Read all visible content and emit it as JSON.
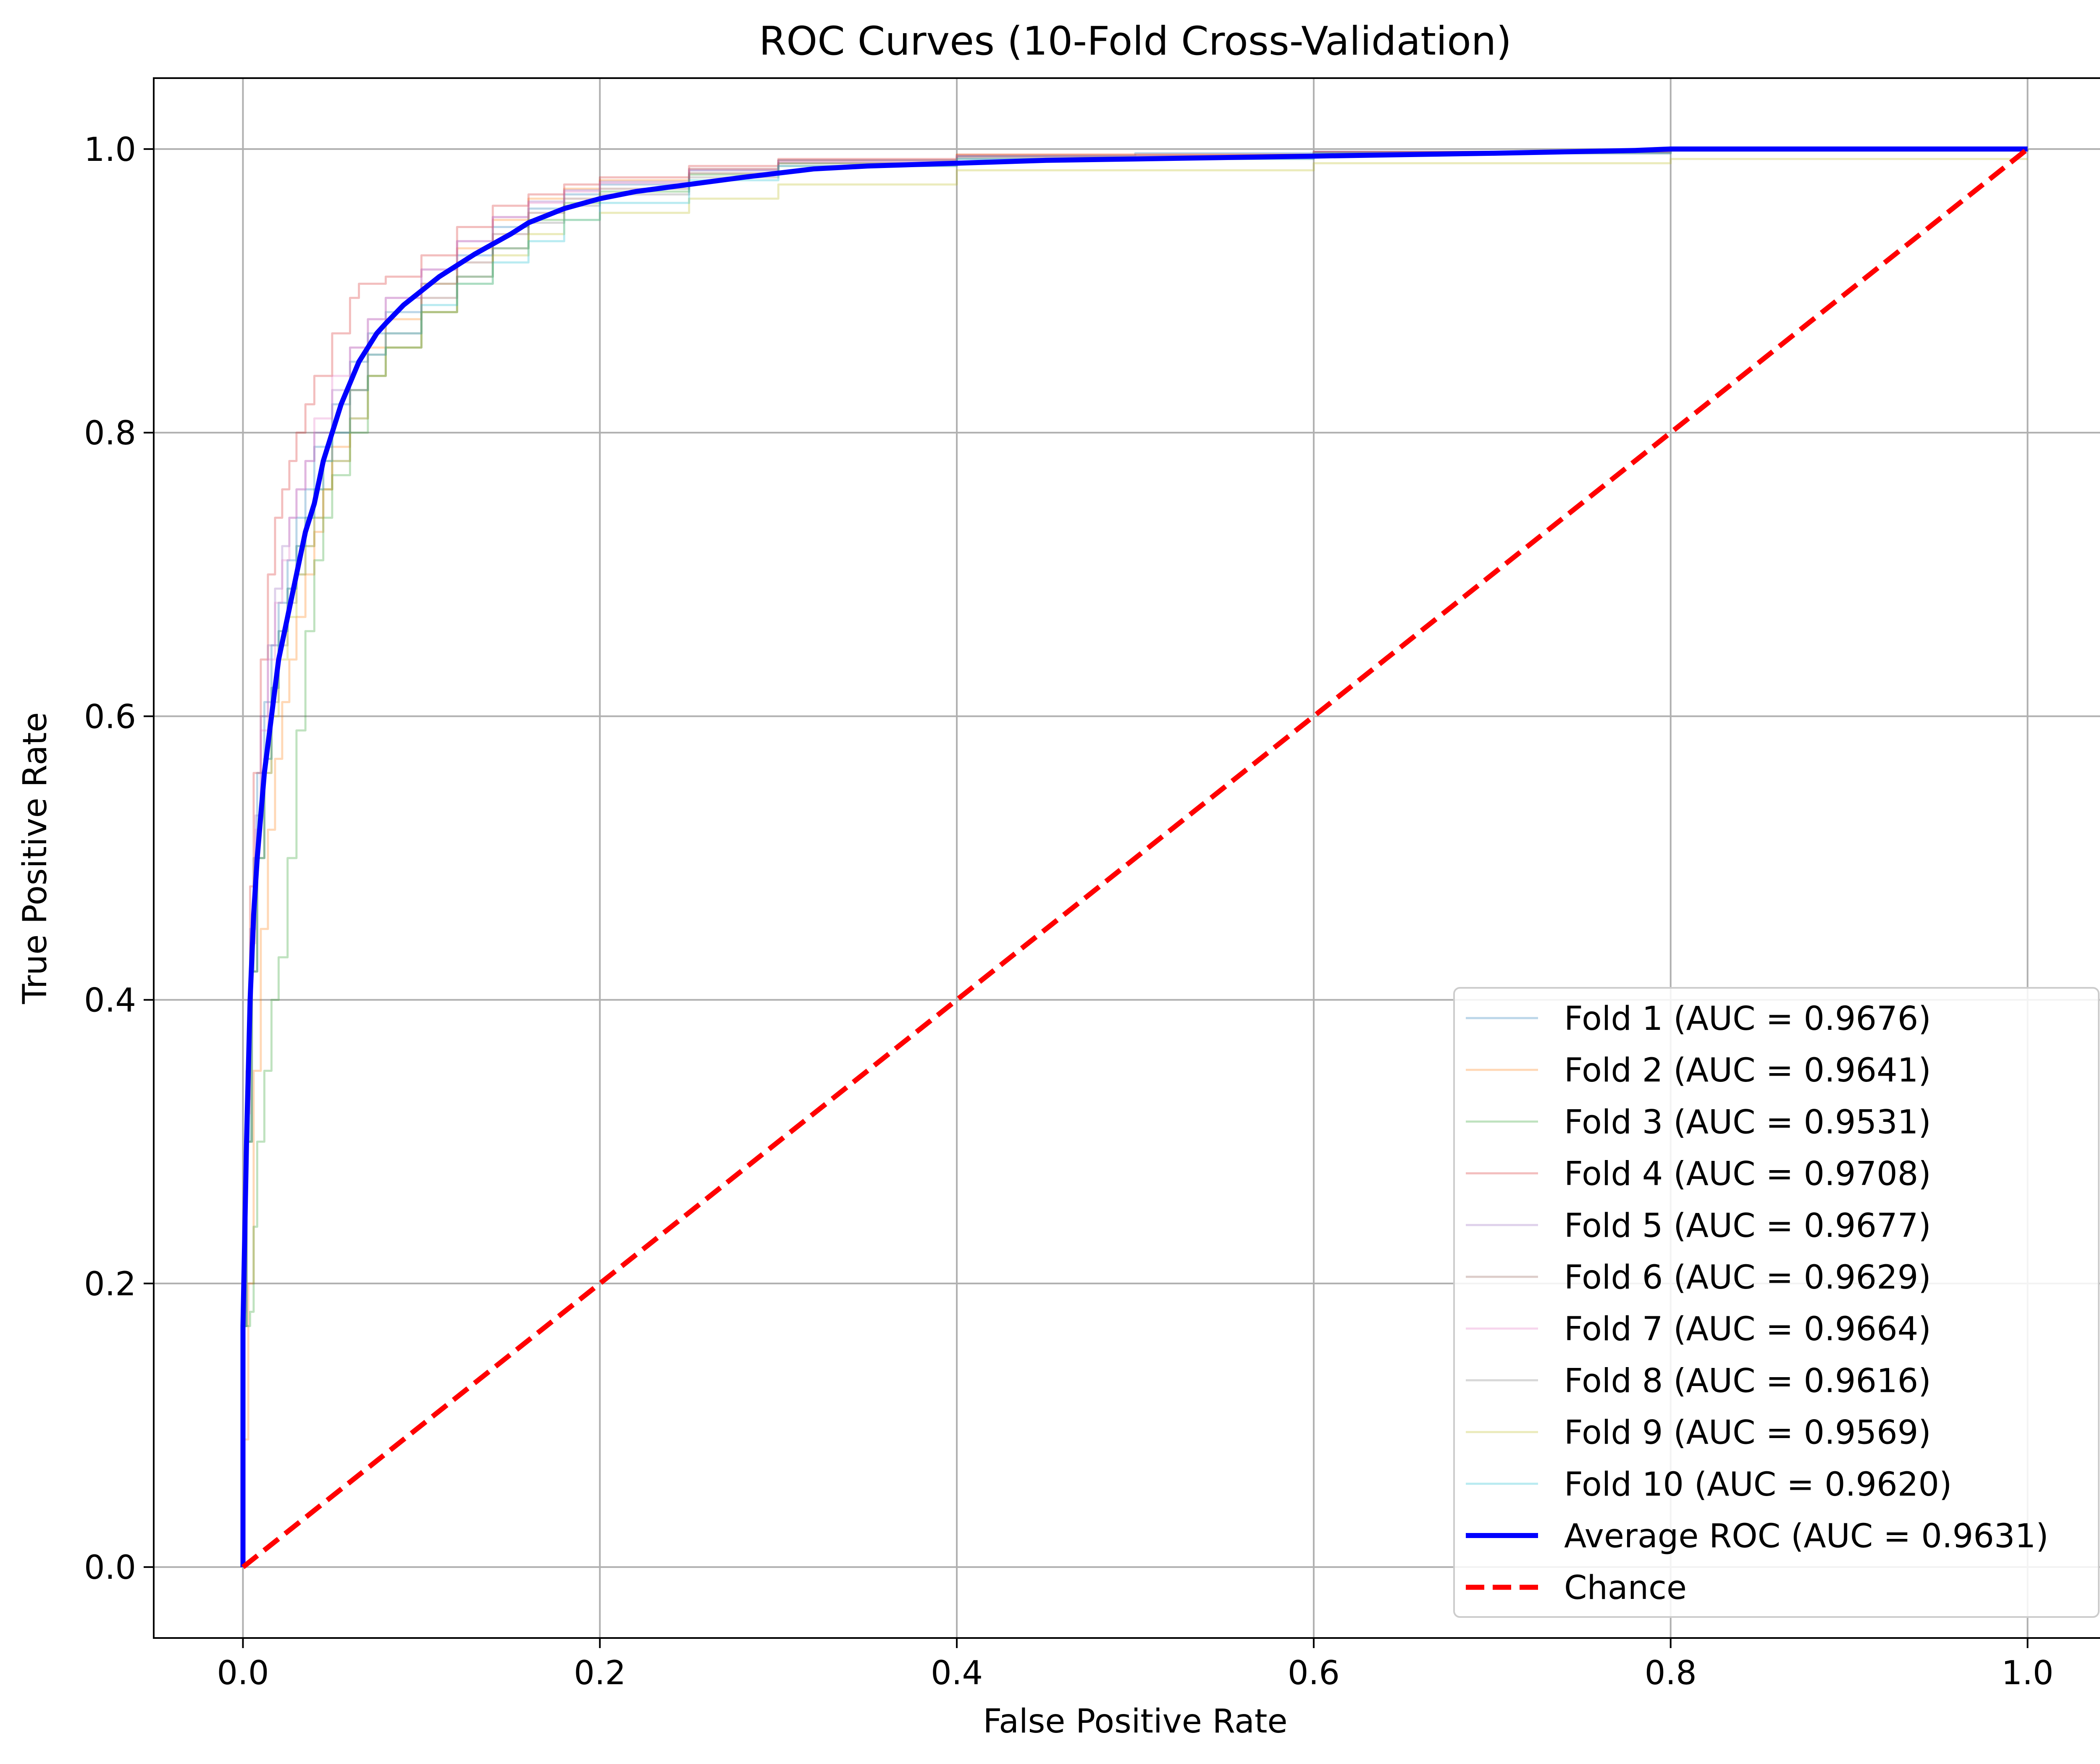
{
  "chart_data": {
    "type": "line",
    "title": "ROC Curves (10-Fold Cross-Validation)",
    "xlabel": "False Positive Rate",
    "ylabel": "True Positive Rate",
    "xlim": [
      -0.05,
      1.05
    ],
    "ylim": [
      -0.05,
      1.05
    ],
    "xticks": [
      0.0,
      0.2,
      0.4,
      0.6,
      0.8,
      1.0
    ],
    "xtick_labels": [
      "0.0",
      "0.2",
      "0.4",
      "0.6",
      "0.8",
      "1.0"
    ],
    "yticks": [
      0.0,
      0.2,
      0.4,
      0.6,
      0.8,
      1.0
    ],
    "ytick_labels": [
      "0.0",
      "0.2",
      "0.4",
      "0.6",
      "0.8",
      "1.0"
    ],
    "grid": true,
    "legend_position": "lower-right",
    "series": [
      {
        "name": "Fold 1 (AUC = 0.9676)",
        "color": "#1f77b4",
        "opacity": 0.3,
        "style": "solid",
        "x": [
          0,
          0,
          0.002,
          0.004,
          0.006,
          0.008,
          0.012,
          0.016,
          0.02,
          0.025,
          0.03,
          0.035,
          0.04,
          0.05,
          0.06,
          0.07,
          0.08,
          0.1,
          0.12,
          0.14,
          0.16,
          0.18,
          0.2,
          0.25,
          0.3,
          0.4,
          0.5,
          0.6,
          0.8,
          1.0
        ],
        "y": [
          0,
          0.17,
          0.3,
          0.42,
          0.5,
          0.56,
          0.61,
          0.65,
          0.68,
          0.71,
          0.74,
          0.76,
          0.79,
          0.82,
          0.85,
          0.87,
          0.885,
          0.905,
          0.925,
          0.945,
          0.958,
          0.968,
          0.975,
          0.985,
          0.992,
          0.995,
          0.997,
          0.998,
          0.999,
          1.0
        ]
      },
      {
        "name": "Fold 2 (AUC = 0.9641)",
        "color": "#ff7f0e",
        "opacity": 0.3,
        "style": "solid",
        "x": [
          0,
          0,
          0.003,
          0.006,
          0.01,
          0.014,
          0.018,
          0.022,
          0.026,
          0.03,
          0.035,
          0.04,
          0.045,
          0.05,
          0.06,
          0.07,
          0.08,
          0.1,
          0.12,
          0.14,
          0.16,
          0.18,
          0.2,
          0.25,
          0.3,
          0.4,
          0.6,
          0.8,
          1.0
        ],
        "y": [
          0,
          0.09,
          0.2,
          0.35,
          0.45,
          0.52,
          0.57,
          0.61,
          0.64,
          0.67,
          0.7,
          0.73,
          0.76,
          0.79,
          0.83,
          0.86,
          0.88,
          0.905,
          0.93,
          0.95,
          0.965,
          0.972,
          0.978,
          0.986,
          0.992,
          0.996,
          0.998,
          0.999,
          1.0
        ]
      },
      {
        "name": "Fold 3 (AUC = 0.9531)",
        "color": "#2ca02c",
        "opacity": 0.3,
        "style": "solid",
        "x": [
          0,
          0,
          0.004,
          0.006,
          0.008,
          0.012,
          0.016,
          0.02,
          0.025,
          0.03,
          0.035,
          0.04,
          0.045,
          0.05,
          0.06,
          0.07,
          0.08,
          0.1,
          0.12,
          0.14,
          0.16,
          0.18,
          0.2,
          0.25,
          0.3,
          0.4,
          0.6,
          0.8,
          1.0
        ],
        "y": [
          0,
          0.17,
          0.18,
          0.24,
          0.3,
          0.35,
          0.4,
          0.43,
          0.5,
          0.59,
          0.66,
          0.71,
          0.74,
          0.77,
          0.8,
          0.84,
          0.86,
          0.885,
          0.91,
          0.93,
          0.95,
          0.962,
          0.97,
          0.982,
          0.99,
          0.995,
          0.998,
          0.999,
          1.0
        ]
      },
      {
        "name": "Fold 4 (AUC = 0.9708)",
        "color": "#d62728",
        "opacity": 0.3,
        "style": "solid",
        "x": [
          0,
          0,
          0.002,
          0.004,
          0.006,
          0.01,
          0.014,
          0.018,
          0.022,
          0.026,
          0.03,
          0.035,
          0.04,
          0.05,
          0.06,
          0.065,
          0.08,
          0.1,
          0.12,
          0.14,
          0.16,
          0.18,
          0.2,
          0.25,
          0.3,
          0.4,
          0.6,
          0.8,
          1.0
        ],
        "y": [
          0,
          0.2,
          0.35,
          0.48,
          0.56,
          0.64,
          0.7,
          0.74,
          0.76,
          0.78,
          0.8,
          0.82,
          0.84,
          0.87,
          0.895,
          0.905,
          0.91,
          0.925,
          0.945,
          0.96,
          0.968,
          0.975,
          0.98,
          0.988,
          0.993,
          0.996,
          0.998,
          0.999,
          1.0
        ]
      },
      {
        "name": "Fold 5 (AUC = 0.9677)",
        "color": "#9467bd",
        "opacity": 0.3,
        "style": "solid",
        "x": [
          0,
          0,
          0.002,
          0.004,
          0.007,
          0.01,
          0.014,
          0.018,
          0.022,
          0.026,
          0.03,
          0.035,
          0.04,
          0.05,
          0.06,
          0.07,
          0.08,
          0.1,
          0.12,
          0.14,
          0.16,
          0.18,
          0.2,
          0.25,
          0.3,
          0.4,
          0.6,
          0.8,
          1.0
        ],
        "y": [
          0,
          0.18,
          0.33,
          0.45,
          0.53,
          0.6,
          0.65,
          0.69,
          0.72,
          0.74,
          0.76,
          0.78,
          0.8,
          0.83,
          0.86,
          0.88,
          0.895,
          0.915,
          0.935,
          0.952,
          0.963,
          0.971,
          0.977,
          0.986,
          0.992,
          0.995,
          0.998,
          0.999,
          1.0
        ]
      },
      {
        "name": "Fold 6 (AUC = 0.9629)",
        "color": "#8c564b",
        "opacity": 0.3,
        "style": "solid",
        "x": [
          0,
          0,
          0.002,
          0.005,
          0.008,
          0.012,
          0.016,
          0.02,
          0.025,
          0.03,
          0.035,
          0.04,
          0.045,
          0.05,
          0.06,
          0.07,
          0.08,
          0.1,
          0.12,
          0.14,
          0.16,
          0.18,
          0.2,
          0.25,
          0.3,
          0.4,
          0.6,
          0.8,
          1.0
        ],
        "y": [
          0,
          0.17,
          0.3,
          0.42,
          0.5,
          0.57,
          0.62,
          0.66,
          0.69,
          0.72,
          0.74,
          0.76,
          0.78,
          0.8,
          0.83,
          0.855,
          0.87,
          0.895,
          0.92,
          0.94,
          0.955,
          0.965,
          0.972,
          0.983,
          0.99,
          0.994,
          0.997,
          0.999,
          1.0
        ]
      },
      {
        "name": "Fold 7 (AUC = 0.9664)",
        "color": "#e377c2",
        "opacity": 0.3,
        "style": "solid",
        "x": [
          0,
          0,
          0.002,
          0.004,
          0.007,
          0.01,
          0.014,
          0.018,
          0.022,
          0.026,
          0.03,
          0.035,
          0.04,
          0.05,
          0.06,
          0.07,
          0.08,
          0.1,
          0.12,
          0.14,
          0.16,
          0.18,
          0.2,
          0.25,
          0.3,
          0.4,
          0.6,
          0.8,
          1.0
        ],
        "y": [
          0,
          0.18,
          0.32,
          0.44,
          0.52,
          0.59,
          0.64,
          0.68,
          0.71,
          0.74,
          0.76,
          0.78,
          0.81,
          0.84,
          0.86,
          0.88,
          0.895,
          0.915,
          0.935,
          0.952,
          0.962,
          0.97,
          0.976,
          0.985,
          0.991,
          0.995,
          0.998,
          0.999,
          1.0
        ]
      },
      {
        "name": "Fold 8 (AUC = 0.9616)",
        "color": "#7f7f7f",
        "opacity": 0.3,
        "style": "solid",
        "x": [
          0,
          0,
          0.002,
          0.005,
          0.008,
          0.012,
          0.016,
          0.02,
          0.025,
          0.03,
          0.035,
          0.04,
          0.045,
          0.05,
          0.06,
          0.07,
          0.08,
          0.1,
          0.12,
          0.14,
          0.16,
          0.18,
          0.2,
          0.25,
          0.3,
          0.4,
          0.6,
          0.8,
          1.0
        ],
        "y": [
          0,
          0.17,
          0.3,
          0.42,
          0.5,
          0.56,
          0.61,
          0.65,
          0.68,
          0.7,
          0.72,
          0.74,
          0.76,
          0.78,
          0.81,
          0.84,
          0.86,
          0.885,
          0.91,
          0.93,
          0.948,
          0.96,
          0.968,
          0.98,
          0.988,
          0.993,
          0.997,
          0.999,
          1.0
        ]
      },
      {
        "name": "Fold 9 (AUC = 0.9569)",
        "color": "#bcbd22",
        "opacity": 0.3,
        "style": "solid",
        "x": [
          0,
          0,
          0.002,
          0.005,
          0.008,
          0.012,
          0.016,
          0.02,
          0.025,
          0.03,
          0.035,
          0.04,
          0.045,
          0.05,
          0.06,
          0.07,
          0.08,
          0.1,
          0.12,
          0.14,
          0.16,
          0.18,
          0.2,
          0.25,
          0.3,
          0.4,
          0.6,
          0.8,
          1.0
        ],
        "y": [
          0,
          0.17,
          0.3,
          0.42,
          0.5,
          0.56,
          0.6,
          0.64,
          0.67,
          0.7,
          0.72,
          0.74,
          0.76,
          0.78,
          0.81,
          0.84,
          0.86,
          0.885,
          0.905,
          0.925,
          0.94,
          0.95,
          0.955,
          0.965,
          0.975,
          0.985,
          0.99,
          0.993,
          0.993
        ]
      },
      {
        "name": "Fold 10 (AUC = 0.9620)",
        "color": "#17becf",
        "opacity": 0.3,
        "style": "solid",
        "x": [
          0,
          0,
          0.002,
          0.005,
          0.008,
          0.012,
          0.016,
          0.02,
          0.025,
          0.03,
          0.035,
          0.04,
          0.045,
          0.05,
          0.06,
          0.07,
          0.08,
          0.1,
          0.12,
          0.14,
          0.16,
          0.18,
          0.2,
          0.25,
          0.3,
          0.4,
          0.6,
          0.8,
          1.0
        ],
        "y": [
          0,
          0.17,
          0.3,
          0.42,
          0.5,
          0.57,
          0.62,
          0.66,
          0.69,
          0.72,
          0.74,
          0.76,
          0.78,
          0.8,
          0.83,
          0.855,
          0.87,
          0.89,
          0.905,
          0.92,
          0.935,
          0.95,
          0.962,
          0.978,
          0.988,
          0.993,
          0.997,
          0.999,
          1.0
        ]
      },
      {
        "name": "Average ROC (AUC = 0.9631)",
        "color": "#0000ff",
        "opacity": 1.0,
        "style": "solid",
        "bold": true,
        "x": [
          0,
          0,
          0.002,
          0.004,
          0.006,
          0.008,
          0.01,
          0.012,
          0.015,
          0.018,
          0.02,
          0.025,
          0.03,
          0.035,
          0.04,
          0.045,
          0.05,
          0.055,
          0.06,
          0.065,
          0.07,
          0.075,
          0.08,
          0.09,
          0.1,
          0.11,
          0.12,
          0.13,
          0.14,
          0.15,
          0.16,
          0.18,
          0.2,
          0.22,
          0.25,
          0.28,
          0.3,
          0.32,
          0.35,
          0.4,
          0.45,
          0.5,
          0.6,
          0.7,
          0.78,
          0.8,
          0.9,
          1.0
        ],
        "y": [
          0,
          0.17,
          0.3,
          0.4,
          0.46,
          0.5,
          0.53,
          0.56,
          0.59,
          0.62,
          0.64,
          0.67,
          0.7,
          0.73,
          0.75,
          0.78,
          0.8,
          0.82,
          0.835,
          0.85,
          0.86,
          0.87,
          0.877,
          0.89,
          0.9,
          0.91,
          0.918,
          0.926,
          0.933,
          0.94,
          0.948,
          0.958,
          0.965,
          0.97,
          0.975,
          0.98,
          0.983,
          0.986,
          0.988,
          0.99,
          0.992,
          0.993,
          0.995,
          0.997,
          0.999,
          1.0,
          1.0,
          1.0
        ]
      },
      {
        "name": "Chance",
        "color": "#ff0000",
        "opacity": 1.0,
        "style": "dashed",
        "x": [
          0,
          1
        ],
        "y": [
          0,
          1
        ]
      }
    ]
  }
}
